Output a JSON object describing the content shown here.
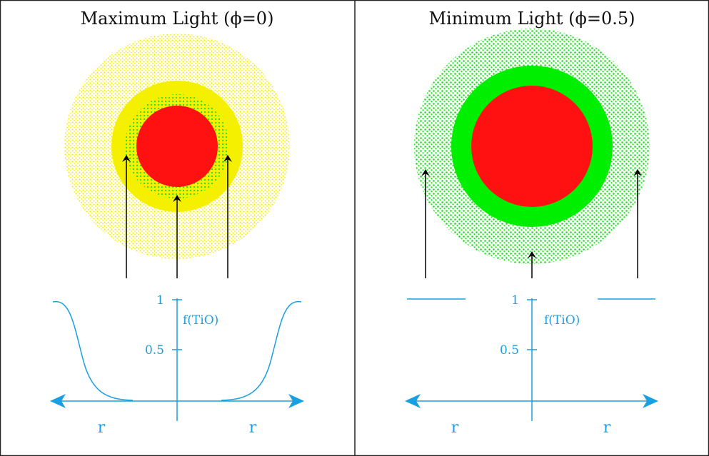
{
  "panels": [
    {
      "title": "Maximum Light (ϕ=0)",
      "tick_high": "1",
      "tick_mid": "0.5",
      "axis_label": "f(TiO)",
      "left_axis_label": "r",
      "right_axis_label": "r"
    },
    {
      "title": "Minimum Light (ϕ=0.5)",
      "tick_high": "1",
      "tick_mid": "0.5",
      "axis_label": "f(TiO)",
      "left_axis_label": "r",
      "right_axis_label": "r"
    }
  ],
  "colors": {
    "outer_halo_max": "#ffff00",
    "inner_ring_max": "#f2f200",
    "green_speckle": "#22dd22",
    "ring_min": "#00ee00",
    "core": "#ff1111",
    "plot": "#1a9fe0",
    "arrow": "#000000"
  }
}
